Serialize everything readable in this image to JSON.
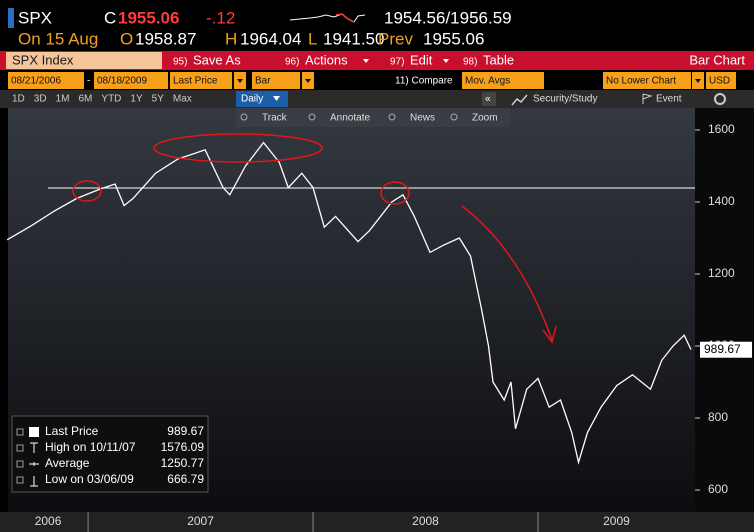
{
  "header": {
    "ticker": "SPX",
    "close_flag": "C",
    "last": "1955.06",
    "change": "-.12",
    "bid_ask": "1954.56/1956.59",
    "date": "On 15 Aug",
    "open_flag": "O",
    "open": "1958.87",
    "high_flag": "H",
    "high": "1964.04",
    "low_flag": "L",
    "low": "1941.50",
    "prev_flag": "Prev",
    "prev": "1955.06"
  },
  "menu": {
    "security": "SPX Index",
    "items": [
      {
        "key": "95)",
        "label": "Save As"
      },
      {
        "key": "96)",
        "label": "Actions"
      },
      {
        "key": "97)",
        "label": "Edit"
      },
      {
        "key": "98)",
        "label": "Table"
      }
    ],
    "view": "Bar Chart"
  },
  "settings": {
    "start": "08/21/2006",
    "separator": "-",
    "end": "08/18/2009",
    "field": "Last Price",
    "style": "Bar",
    "compare": "11) Compare",
    "studies": "Mov. Avgs",
    "lower": "No Lower Chart",
    "currency": "USD"
  },
  "periods": {
    "items": [
      "1D",
      "3D",
      "1M",
      "6M",
      "YTD",
      "1Y",
      "5Y",
      "Max"
    ],
    "frequency": "Daily",
    "collapse": "«",
    "study": "Security/Study",
    "event": "Event"
  },
  "tools": [
    "Track",
    "Annotate",
    "News",
    "Zoom"
  ],
  "legend": {
    "rows": [
      {
        "label": "High on 10/11/07",
        "value": "1576.09"
      },
      {
        "label": "Average",
        "value": "1250.77"
      },
      {
        "label": "Low on 03/06/09",
        "value": "666.79"
      }
    ]
  },
  "chart_data": {
    "type": "line",
    "x": [
      2006.64,
      2006.75,
      2006.85,
      2006.95,
      2007.05,
      2007.12,
      2007.16,
      2007.2,
      2007.3,
      2007.4,
      2007.45,
      2007.52,
      2007.6,
      2007.63,
      2007.7,
      2007.78,
      2007.85,
      2007.89,
      2007.95,
      2008.0,
      2008.05,
      2008.1,
      2008.2,
      2008.25,
      2008.35,
      2008.4,
      2008.45,
      2008.52,
      2008.58,
      2008.65,
      2008.7,
      2008.75,
      2008.78,
      2008.8,
      2008.85,
      2008.88,
      2008.9,
      2008.95,
      2009.0,
      2009.05,
      2009.1,
      2009.15,
      2009.18,
      2009.22,
      2009.28,
      2009.35,
      2009.42,
      2009.46,
      2009.5,
      2009.55,
      2009.6,
      2009.65,
      2009.68
    ],
    "series": [
      {
        "name": "Last Price",
        "color": "#ffffff",
        "values": [
          1295,
          1335,
          1375,
          1410,
          1435,
          1450,
          1390,
          1410,
          1480,
          1520,
          1530,
          1545,
          1440,
          1420,
          1500,
          1565,
          1510,
          1440,
          1480,
          1440,
          1330,
          1360,
          1290,
          1320,
          1400,
          1420,
          1360,
          1260,
          1280,
          1300,
          1250,
          1100,
          1000,
          900,
          850,
          900,
          770,
          880,
          910,
          830,
          850,
          760,
          677,
          760,
          830,
          890,
          920,
          900,
          880,
          960,
          1000,
          1030,
          990
        ]
      }
    ],
    "last_value": 989.67,
    "xlim": [
      2006.644,
      2009.698
    ],
    "xticks": [
      {
        "value": 2006,
        "label": "2006"
      },
      {
        "value": 2007,
        "label": "2007"
      },
      {
        "value": 2008,
        "label": "2008"
      },
      {
        "value": 2009,
        "label": "2009"
      }
    ],
    "ylim": [
      539,
      1661
    ],
    "yticks": [
      600,
      800,
      1000,
      1200,
      1400,
      1600
    ]
  }
}
